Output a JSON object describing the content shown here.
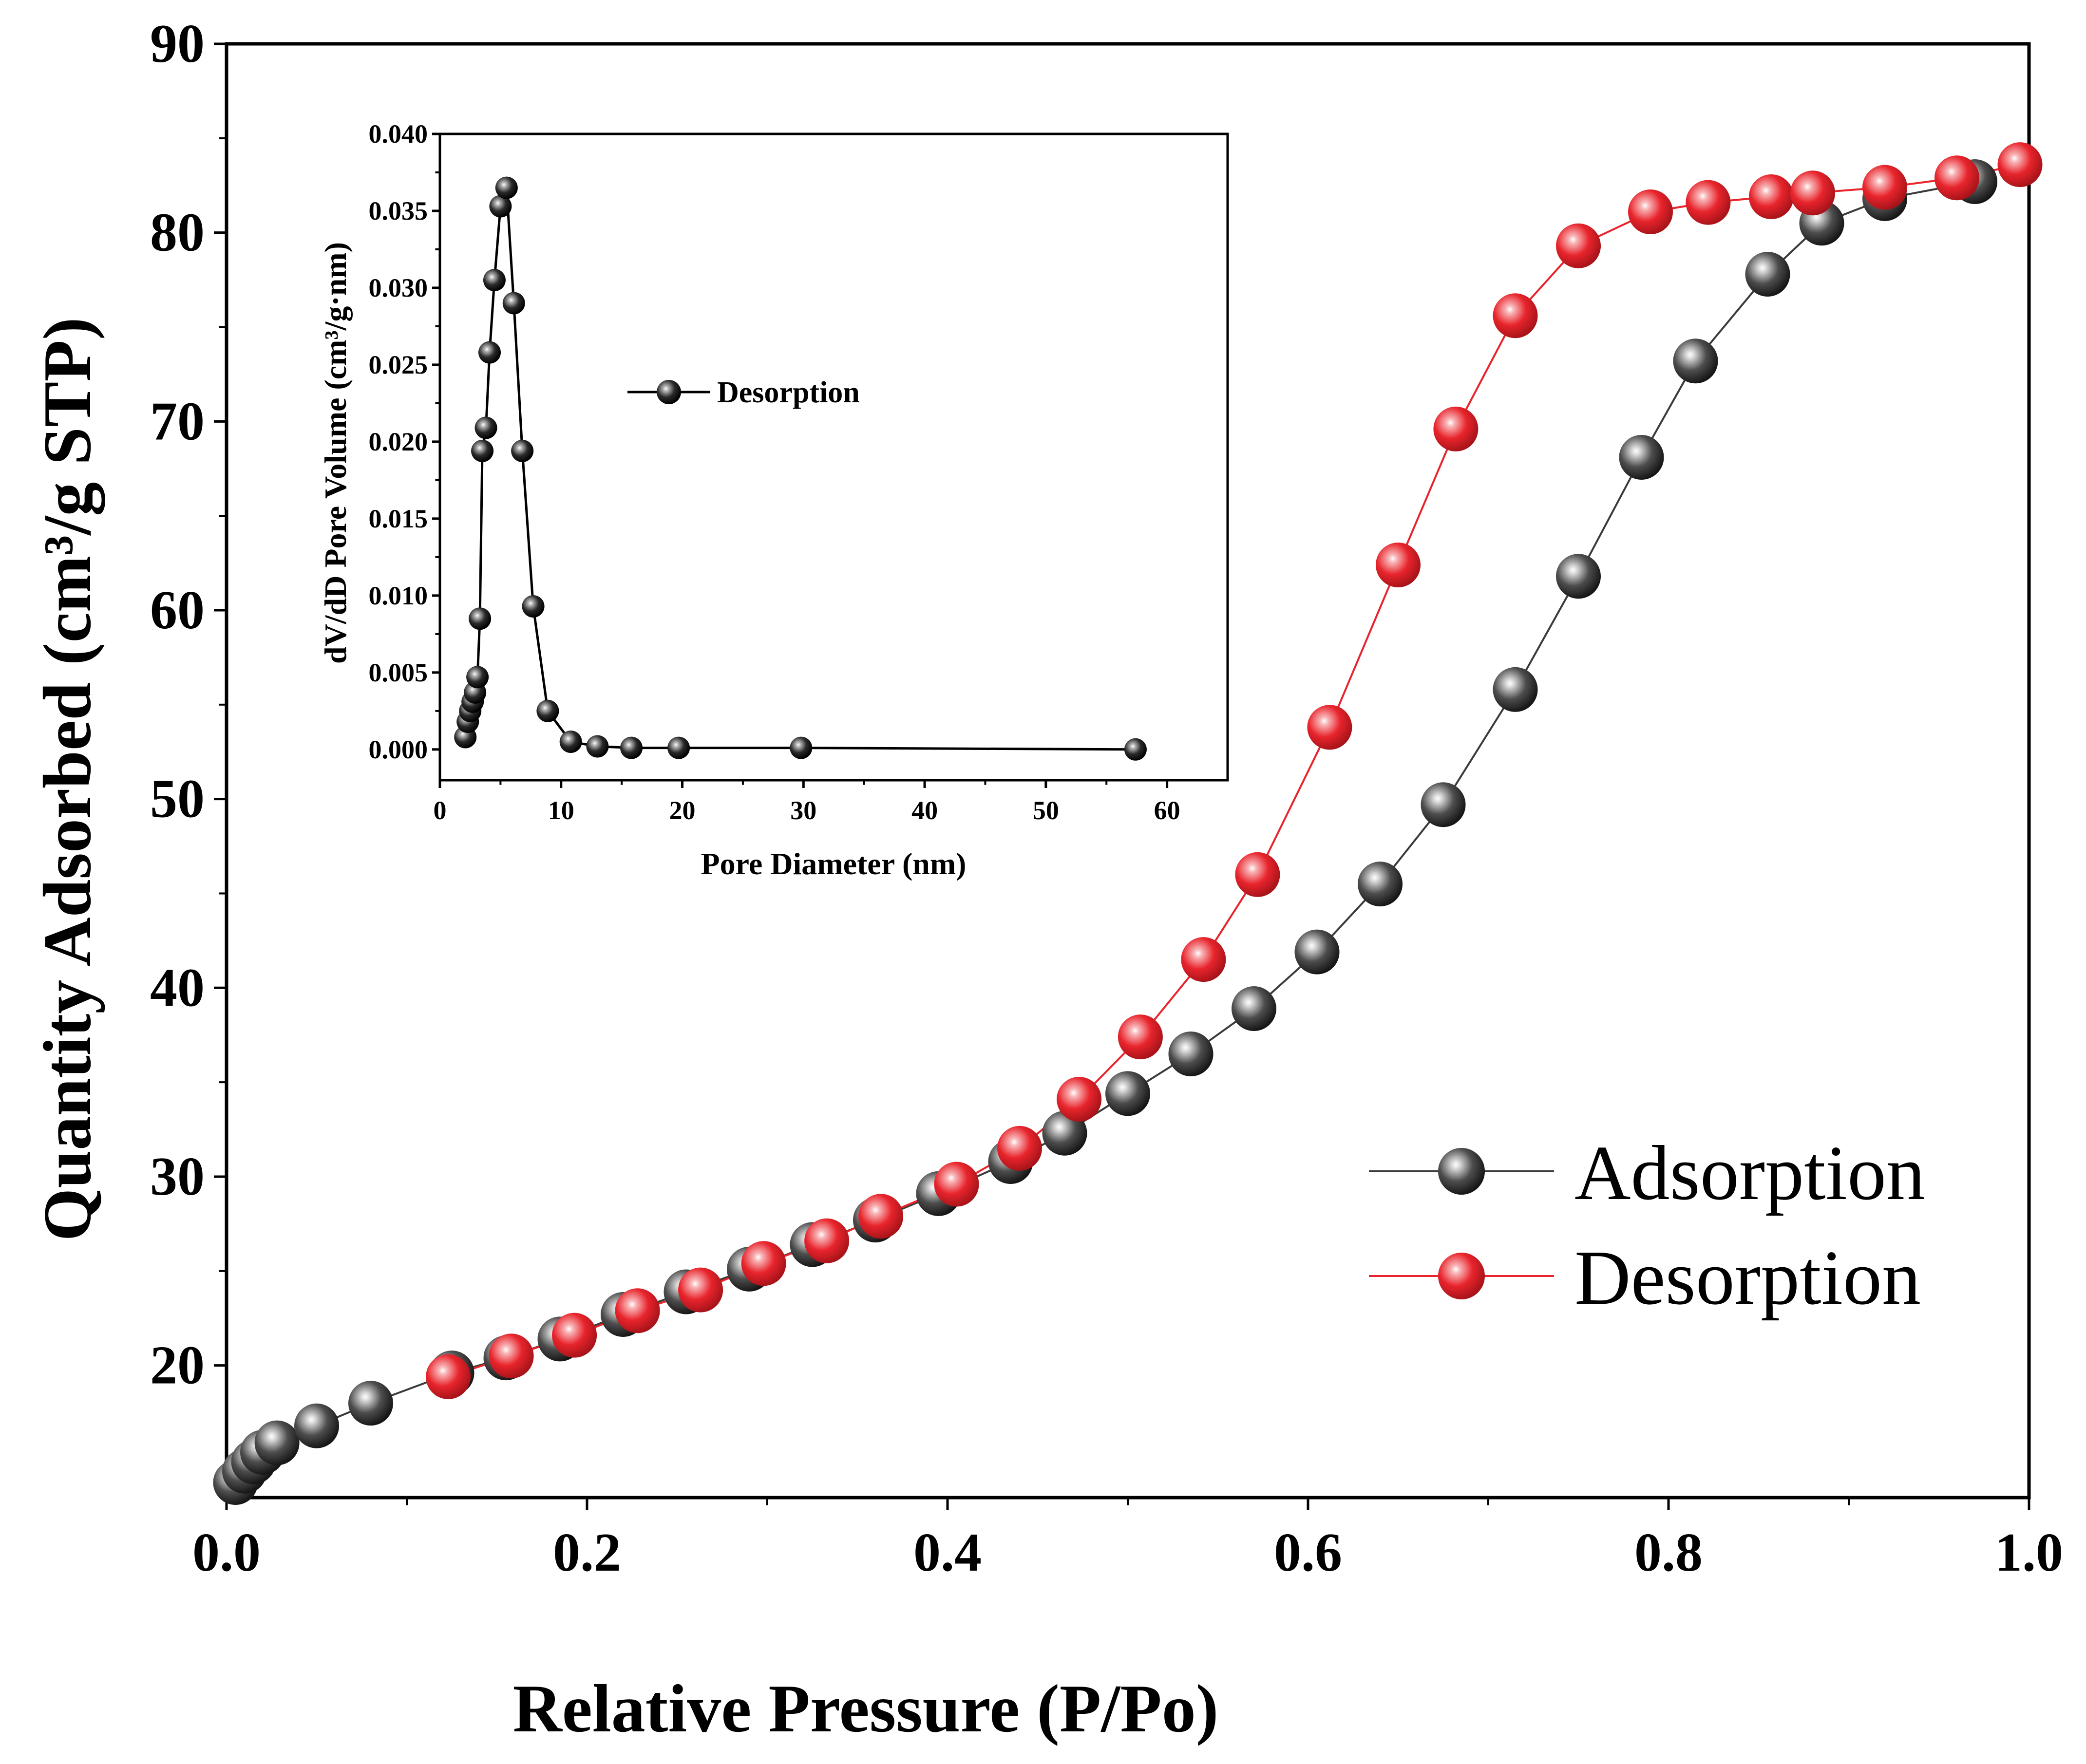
{
  "colors": {
    "adsorption": "#3b3b3b",
    "desorption": "#e8242c",
    "axis": "#000000",
    "background": "#ffffff"
  },
  "chart_data": [
    {
      "id": "main",
      "type": "scatter",
      "title": "",
      "xlabel": "Relative Pressure (P/Po)",
      "ylabel": "Quantity Adsorbed (cm³/g STP)",
      "xlim": [
        0.0,
        1.0
      ],
      "ylim": [
        13,
        90
      ],
      "xticks": [
        "0.0",
        "0.2",
        "0.4",
        "0.6",
        "0.8",
        "1.0"
      ],
      "yticks": [
        "20",
        "30",
        "40",
        "50",
        "60",
        "70",
        "80",
        "90"
      ],
      "grid": false,
      "legend": "lower-right",
      "series": [
        {
          "name": "Adsorption",
          "color_key": "adsorption",
          "marker": "sphere",
          "x": [
            0.005,
            0.01,
            0.015,
            0.02,
            0.028,
            0.05,
            0.08,
            0.125,
            0.155,
            0.185,
            0.22,
            0.255,
            0.29,
            0.325,
            0.36,
            0.395,
            0.435,
            0.465,
            0.5,
            0.535,
            0.57,
            0.605,
            0.64,
            0.675,
            0.715,
            0.75,
            0.785,
            0.815,
            0.855,
            0.885,
            0.92,
            0.97
          ],
          "y": [
            13.8,
            14.4,
            14.9,
            15.4,
            15.9,
            16.8,
            18.0,
            19.6,
            20.4,
            21.4,
            22.7,
            23.9,
            25.1,
            26.4,
            27.7,
            29.1,
            30.8,
            32.3,
            34.4,
            36.5,
            38.9,
            41.9,
            45.5,
            49.7,
            55.8,
            61.8,
            68.1,
            73.2,
            77.8,
            80.5,
            81.8,
            82.7
          ]
        },
        {
          "name": "Desorption",
          "color_key": "desorption",
          "marker": "sphere",
          "x": [
            0.123,
            0.158,
            0.193,
            0.228,
            0.263,
            0.298,
            0.333,
            0.363,
            0.405,
            0.44,
            0.473,
            0.507,
            0.542,
            0.572,
            0.612,
            0.65,
            0.682,
            0.715,
            0.75,
            0.79,
            0.822,
            0.857,
            0.88,
            0.92,
            0.96,
            0.995
          ],
          "y": [
            19.4,
            20.5,
            21.6,
            22.9,
            24.0,
            25.4,
            26.6,
            27.9,
            29.6,
            31.5,
            34.1,
            37.4,
            41.5,
            46.0,
            53.8,
            62.4,
            69.6,
            75.6,
            79.3,
            81.1,
            81.6,
            81.9,
            82.1,
            82.4,
            82.9,
            83.6
          ]
        }
      ]
    },
    {
      "id": "inset",
      "type": "line",
      "title": "",
      "xlabel": "Pore Diameter (nm)",
      "ylabel": "dV/dD Pore Volume (cm³/g·nm)",
      "xlim": [
        0,
        65
      ],
      "ylim": [
        -0.002,
        0.04
      ],
      "xticks": [
        "0",
        "10",
        "20",
        "30",
        "40",
        "50",
        "60"
      ],
      "yticks": [
        "0.000",
        "0.005",
        "0.010",
        "0.015",
        "0.020",
        "0.025",
        "0.030",
        "0.035",
        "0.040"
      ],
      "grid": false,
      "legend": "top-center",
      "series": [
        {
          "name": "Desorption",
          "color_key": "axis",
          "marker": "sphere",
          "x": [
            2.1,
            2.3,
            2.5,
            2.7,
            2.9,
            3.1,
            3.3,
            3.5,
            3.8,
            4.1,
            4.5,
            5.0,
            5.5,
            6.1,
            6.8,
            7.7,
            8.9,
            10.8,
            13.0,
            15.8,
            19.7,
            29.8,
            57.4
          ],
          "y": [
            0.0008,
            0.0018,
            0.0025,
            0.0031,
            0.0037,
            0.0047,
            0.0085,
            0.0194,
            0.0209,
            0.0258,
            0.0305,
            0.0353,
            0.0365,
            0.029,
            0.0194,
            0.0093,
            0.0025,
            0.0005,
            0.0002,
            0.0001,
            0.0001,
            0.0001,
            0.0
          ]
        }
      ]
    }
  ]
}
